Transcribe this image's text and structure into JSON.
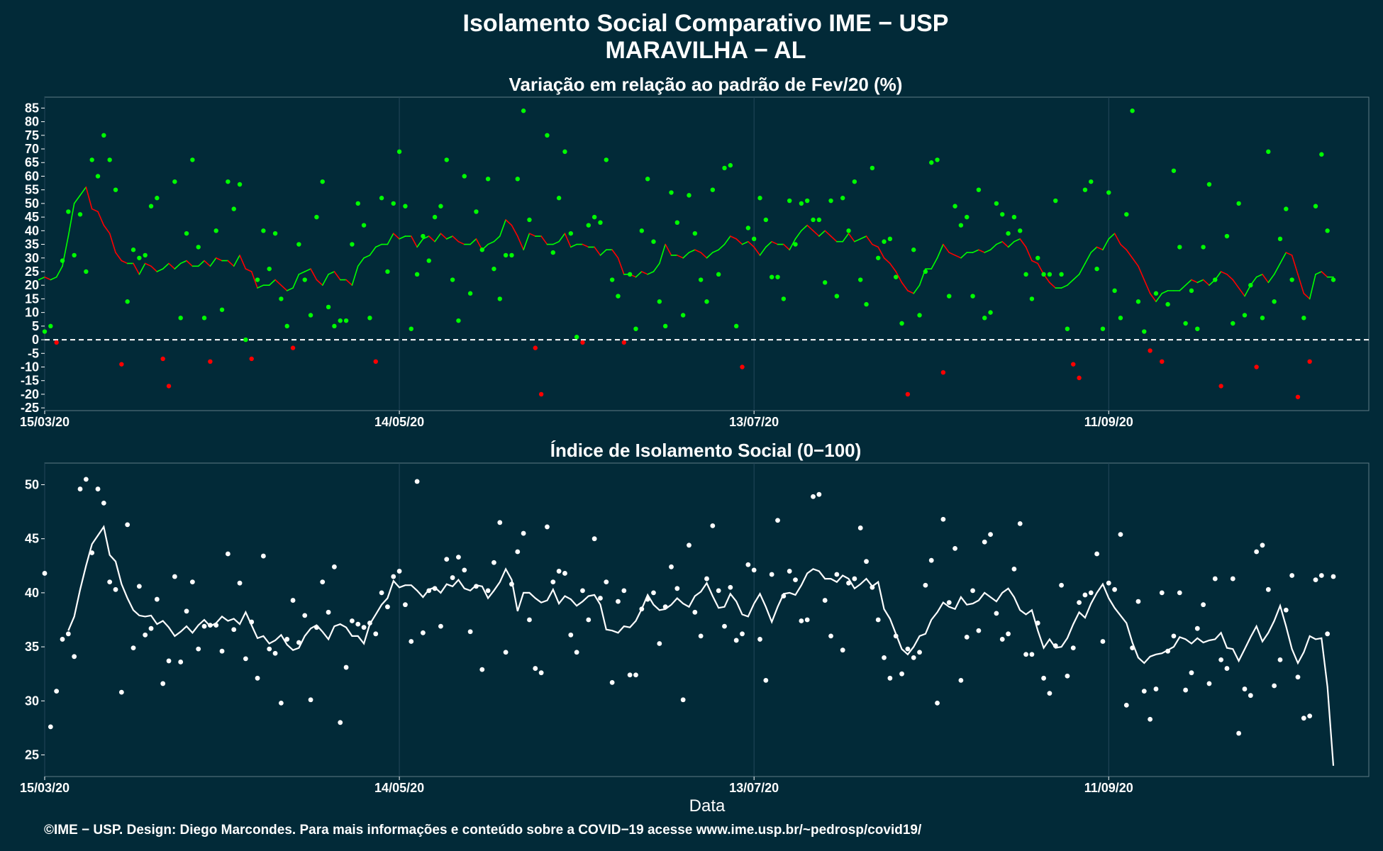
{
  "title": "Isolamento Social Comparativo IME − USP",
  "location": "MARAVILHA − AL",
  "caption": "©IME − USP. Design: Diego Marcondes. Para mais informações e conteúdo sobre a COVID−19 acesse www.ime.usp.br/~pedrosp/covid19/",
  "colors": {
    "background": "#022a38",
    "above_baseline": "#00ff00",
    "below_baseline": "#ff0000",
    "index_series": "#ffffff"
  },
  "chart_data": [
    {
      "type": "scatter",
      "title": "Variação em relação ao padrão de Fev/20 (%)",
      "xlabel": "",
      "ylabel": "",
      "x_tick_labels": [
        "15/03/20",
        "14/05/20",
        "13/07/20",
        "11/09/20"
      ],
      "x_tick_days": [
        0,
        60,
        120,
        180
      ],
      "y_ticks": [
        85,
        80,
        75,
        70,
        65,
        60,
        55,
        50,
        45,
        40,
        35,
        30,
        25,
        20,
        15,
        10,
        5,
        0,
        -5,
        -10,
        -15,
        -20,
        -25
      ],
      "ylim": [
        -26,
        89
      ],
      "xlim_days": [
        0,
        224
      ],
      "grid": true,
      "baseline": 0,
      "baseline_style": "dashed",
      "series": [
        {
          "kind": "points",
          "values": [
            3,
            5,
            -1,
            29,
            47,
            31,
            46,
            25,
            66,
            60,
            75,
            66,
            55,
            -9,
            14,
            33,
            30,
            31,
            49,
            52,
            -7,
            -17,
            58,
            8,
            39,
            66,
            34,
            8,
            -8,
            40,
            11,
            58,
            48,
            57,
            0,
            -7,
            22,
            40,
            26,
            39,
            15,
            5,
            -3,
            35,
            22,
            9,
            45,
            58,
            12,
            5,
            7,
            7,
            35,
            50,
            42,
            8,
            -8,
            52,
            25,
            50,
            69,
            49,
            4,
            24,
            38,
            29,
            45,
            49,
            66,
            22,
            7,
            60,
            17,
            47,
            33,
            59,
            26,
            15,
            31,
            31,
            59,
            84,
            44,
            -3,
            -20,
            75,
            32,
            52,
            69,
            39,
            1,
            -1,
            42,
            45,
            43,
            66,
            22,
            16,
            -1,
            24,
            4,
            40,
            59,
            36,
            14,
            5,
            54,
            43,
            9,
            53,
            39,
            22,
            14,
            55,
            24,
            63,
            64,
            5,
            -10,
            41,
            37,
            52,
            44,
            23,
            23,
            15,
            51,
            35,
            50,
            51,
            44,
            44,
            21,
            51,
            16,
            52,
            40,
            58,
            22,
            13,
            63,
            30,
            36,
            37,
            23,
            6,
            -20,
            33,
            9,
            25,
            65,
            66,
            -12,
            16,
            49,
            42,
            45,
            16,
            55,
            8,
            10,
            50,
            46,
            39,
            45,
            40,
            24,
            15,
            30,
            24,
            24,
            51,
            24,
            4,
            -9,
            -14,
            55,
            58,
            26,
            4,
            54,
            18,
            8,
            46,
            84,
            14,
            3,
            -4,
            17,
            -8,
            13,
            62,
            34,
            6,
            18,
            4,
            34,
            57,
            22,
            -17,
            38,
            6,
            50,
            9,
            20,
            -10,
            8,
            69,
            14,
            37,
            48,
            22,
            -21,
            8,
            -8,
            49,
            68,
            40,
            22
          ]
        },
        {
          "kind": "line",
          "name": "",
          "values": [
            22,
            23,
            22,
            23,
            27,
            38,
            50,
            53,
            56,
            48,
            47,
            42,
            39,
            32,
            29,
            28,
            28,
            24,
            28,
            27,
            25,
            26,
            28,
            26,
            28,
            29,
            27,
            27,
            29,
            27,
            30,
            29,
            29,
            27,
            31,
            26,
            25,
            19,
            20,
            20,
            22,
            20,
            18,
            19,
            24,
            25,
            26,
            22,
            20,
            24,
            25,
            22,
            22,
            20,
            27,
            30,
            31,
            34,
            35,
            35,
            39,
            37,
            38,
            38,
            34,
            37,
            38,
            36,
            39,
            37,
            38,
            36,
            35,
            35,
            37,
            33,
            35,
            36,
            38,
            44,
            42,
            38,
            33,
            39,
            38,
            38,
            35,
            35,
            36,
            39,
            34,
            35,
            35,
            34,
            34,
            31,
            33,
            33,
            30,
            24,
            24,
            23,
            25,
            24,
            25,
            28,
            35,
            31,
            31,
            30,
            32,
            33,
            32,
            30,
            32,
            33,
            35,
            38,
            37,
            35,
            36,
            34,
            31,
            34,
            36,
            35,
            35,
            33,
            37,
            40,
            42,
            40,
            38,
            40,
            38,
            36,
            36,
            39,
            36,
            37,
            38,
            35,
            34,
            30,
            28,
            25,
            21,
            18,
            17,
            20,
            26,
            26,
            30,
            35,
            32,
            31,
            30,
            32,
            32,
            33,
            32,
            33,
            35,
            36,
            34,
            36,
            37,
            34,
            29,
            28,
            24,
            21,
            19,
            19,
            20,
            22,
            24,
            28,
            32,
            34,
            33,
            37,
            39,
            35,
            33,
            30,
            27,
            22,
            17,
            14,
            17,
            18,
            18,
            18,
            20,
            22,
            21,
            22,
            20,
            22,
            25,
            24,
            22,
            19,
            16,
            20,
            23,
            24,
            21,
            24,
            28,
            32,
            31,
            24,
            17,
            15,
            24,
            25,
            23,
            23
          ]
        }
      ]
    },
    {
      "type": "scatter",
      "title": "Índice de Isolamento Social (0−100)",
      "xlabel": "Data",
      "ylabel": "",
      "x_tick_labels": [
        "15/03/20",
        "14/05/20",
        "13/07/20",
        "11/09/20"
      ],
      "x_tick_days": [
        0,
        60,
        120,
        180
      ],
      "y_ticks": [
        50,
        45,
        40,
        35,
        30,
        25
      ],
      "ylim": [
        23,
        52
      ],
      "xlim_days": [
        0,
        224
      ],
      "grid": true,
      "series": [
        {
          "kind": "points",
          "values": [
            41.8,
            27.6,
            30.9,
            35.7,
            36.2,
            34.1,
            49.6,
            50.5,
            43.7,
            49.6,
            48.3,
            41.0,
            40.3,
            30.8,
            46.3,
            34.9,
            40.6,
            36.1,
            36.7,
            39.4,
            31.6,
            33.7,
            41.5,
            33.6,
            38.3,
            41.0,
            34.8,
            36.9,
            37.0,
            37.0,
            34.6,
            43.6,
            36.6,
            40.9,
            33.9,
            37.3,
            32.1,
            43.4,
            34.8,
            34.4,
            29.8,
            35.7,
            39.3,
            35.4,
            37.9,
            30.1,
            36.8,
            41.0,
            38.2,
            42.4,
            28.0,
            33.1,
            37.4,
            37.1,
            36.8,
            37.2,
            36.2,
            40.0,
            38.7,
            41.5,
            42.0,
            38.9,
            35.5,
            50.3,
            36.3,
            40.2,
            40.4,
            36.9,
            43.1,
            41.4,
            43.3,
            42.1,
            36.4,
            40.6,
            32.9,
            40.2,
            42.8,
            46.5,
            34.5,
            40.8,
            43.8,
            45.5,
            37.5,
            33.0,
            32.6,
            46.1,
            41.0,
            42.0,
            41.8,
            36.1,
            34.5,
            40.2,
            37.5,
            45.0,
            39.5,
            41.0,
            31.7,
            39.2,
            40.2,
            32.4,
            32.4,
            38.5,
            39.4,
            40.0,
            35.3,
            38.7,
            42.4,
            40.4,
            30.1,
            44.4,
            38.2,
            36.0,
            41.3,
            46.2,
            40.2,
            36.9,
            40.5,
            35.6,
            36.2,
            42.6,
            42.1,
            35.7,
            31.9,
            41.7,
            46.7,
            39.7,
            42.0,
            41.2,
            37.4,
            37.5,
            48.9,
            49.1,
            39.3,
            36.0,
            41.7,
            34.7,
            40.9,
            41.3,
            46.0,
            42.9,
            40.5,
            37.5,
            34.0,
            32.1,
            36.0,
            32.5,
            34.8,
            34.0,
            34.5,
            40.7,
            43.0,
            29.8,
            46.8,
            39.1,
            44.1,
            31.9,
            35.9,
            40.2,
            36.5,
            44.7,
            45.4,
            38.1,
            35.7,
            36.2,
            42.2,
            46.4,
            34.3,
            34.3,
            37.2,
            32.1,
            30.7,
            35.1,
            40.7,
            32.3,
            34.9,
            39.1,
            39.8,
            40.0,
            43.6,
            35.5,
            40.9,
            40.3,
            45.4,
            29.6,
            34.9,
            39.2,
            30.9,
            28.3,
            31.1,
            40.0,
            34.6,
            36.0,
            40.0,
            31.0,
            32.6,
            36.7,
            38.9,
            31.6,
            41.3,
            33.8,
            33.0,
            41.3,
            27.0,
            31.1,
            30.5,
            43.8,
            44.4,
            40.3,
            31.4,
            33.8,
            38.4,
            41.6,
            32.2,
            28.4,
            28.6,
            41.2,
            41.6,
            36.2,
            41.5
          ]
        },
        {
          "kind": "line",
          "name": "",
          "values": [
            36.5,
            37.8,
            40.3,
            42.5,
            44.5,
            45.3,
            46.1,
            43.5,
            42.9,
            40.8,
            39.5,
            38.4,
            37.9,
            37.8,
            37.9,
            37.1,
            37.4,
            36.8,
            36.0,
            36.4,
            36.9,
            36.3,
            37.0,
            37.5,
            36.9,
            37.2,
            37.8,
            37.4,
            37.6,
            37.1,
            38.2,
            37.0,
            35.8,
            36.0,
            35.3,
            35.6,
            36.1,
            35.2,
            34.7,
            34.9,
            36.0,
            36.7,
            37.0,
            36.4,
            35.7,
            36.9,
            37.1,
            36.8,
            36.0,
            36.0,
            35.3,
            37.1,
            38.0,
            38.9,
            39.5,
            41.1,
            40.5,
            40.7,
            40.7,
            40.2,
            39.6,
            40.3,
            40.5,
            40.0,
            40.8,
            40.6,
            41.2,
            40.4,
            40.2,
            40.7,
            40.6,
            39.5,
            40.2,
            41.0,
            42.2,
            41.2,
            38.3,
            40.0,
            40.0,
            39.5,
            39.1,
            39.3,
            40.3,
            39.0,
            39.7,
            39.4,
            38.8,
            39.2,
            39.7,
            39.8,
            38.9,
            36.6,
            36.5,
            36.3,
            36.9,
            36.8,
            37.4,
            38.5,
            39.8,
            38.9,
            38.4,
            38.5,
            38.9,
            39.5,
            39.0,
            38.7,
            39.7,
            40.1,
            40.9,
            39.7,
            38.6,
            38.7,
            39.9,
            39.2,
            38.0,
            37.8,
            39.0,
            39.9,
            38.7,
            37.3,
            38.7,
            39.9,
            40.0,
            39.8,
            40.7,
            41.8,
            42.2,
            42.0,
            41.3,
            41.3,
            41.0,
            41.6,
            41.3,
            40.4,
            40.8,
            41.3,
            40.6,
            41.0,
            38.5,
            37.6,
            36.2,
            34.8,
            34.3,
            35.0,
            36.0,
            36.2,
            37.5,
            38.2,
            39.1,
            38.7,
            38.5,
            39.6,
            38.9,
            39.0,
            39.3,
            40.0,
            39.6,
            39.2,
            40.0,
            40.4,
            39.6,
            38.4,
            38.0,
            38.4,
            36.5,
            34.9,
            35.7,
            34.9,
            35.0,
            35.8,
            37.1,
            38.2,
            37.7,
            39.0,
            40.0,
            40.8,
            39.5,
            38.6,
            37.9,
            37.2,
            35.4,
            34.0,
            33.5,
            34.1,
            34.3,
            34.4,
            34.7,
            35.0,
            35.9,
            35.7,
            35.3,
            35.8,
            35.4,
            35.6,
            35.7,
            36.3,
            34.9,
            34.8,
            33.7,
            34.8,
            35.9,
            36.9,
            35.5,
            36.3,
            37.4,
            38.8,
            36.9,
            34.8,
            33.5,
            34.5,
            36.0,
            35.7,
            35.8,
            31.3,
            24.0
          ]
        }
      ]
    }
  ]
}
